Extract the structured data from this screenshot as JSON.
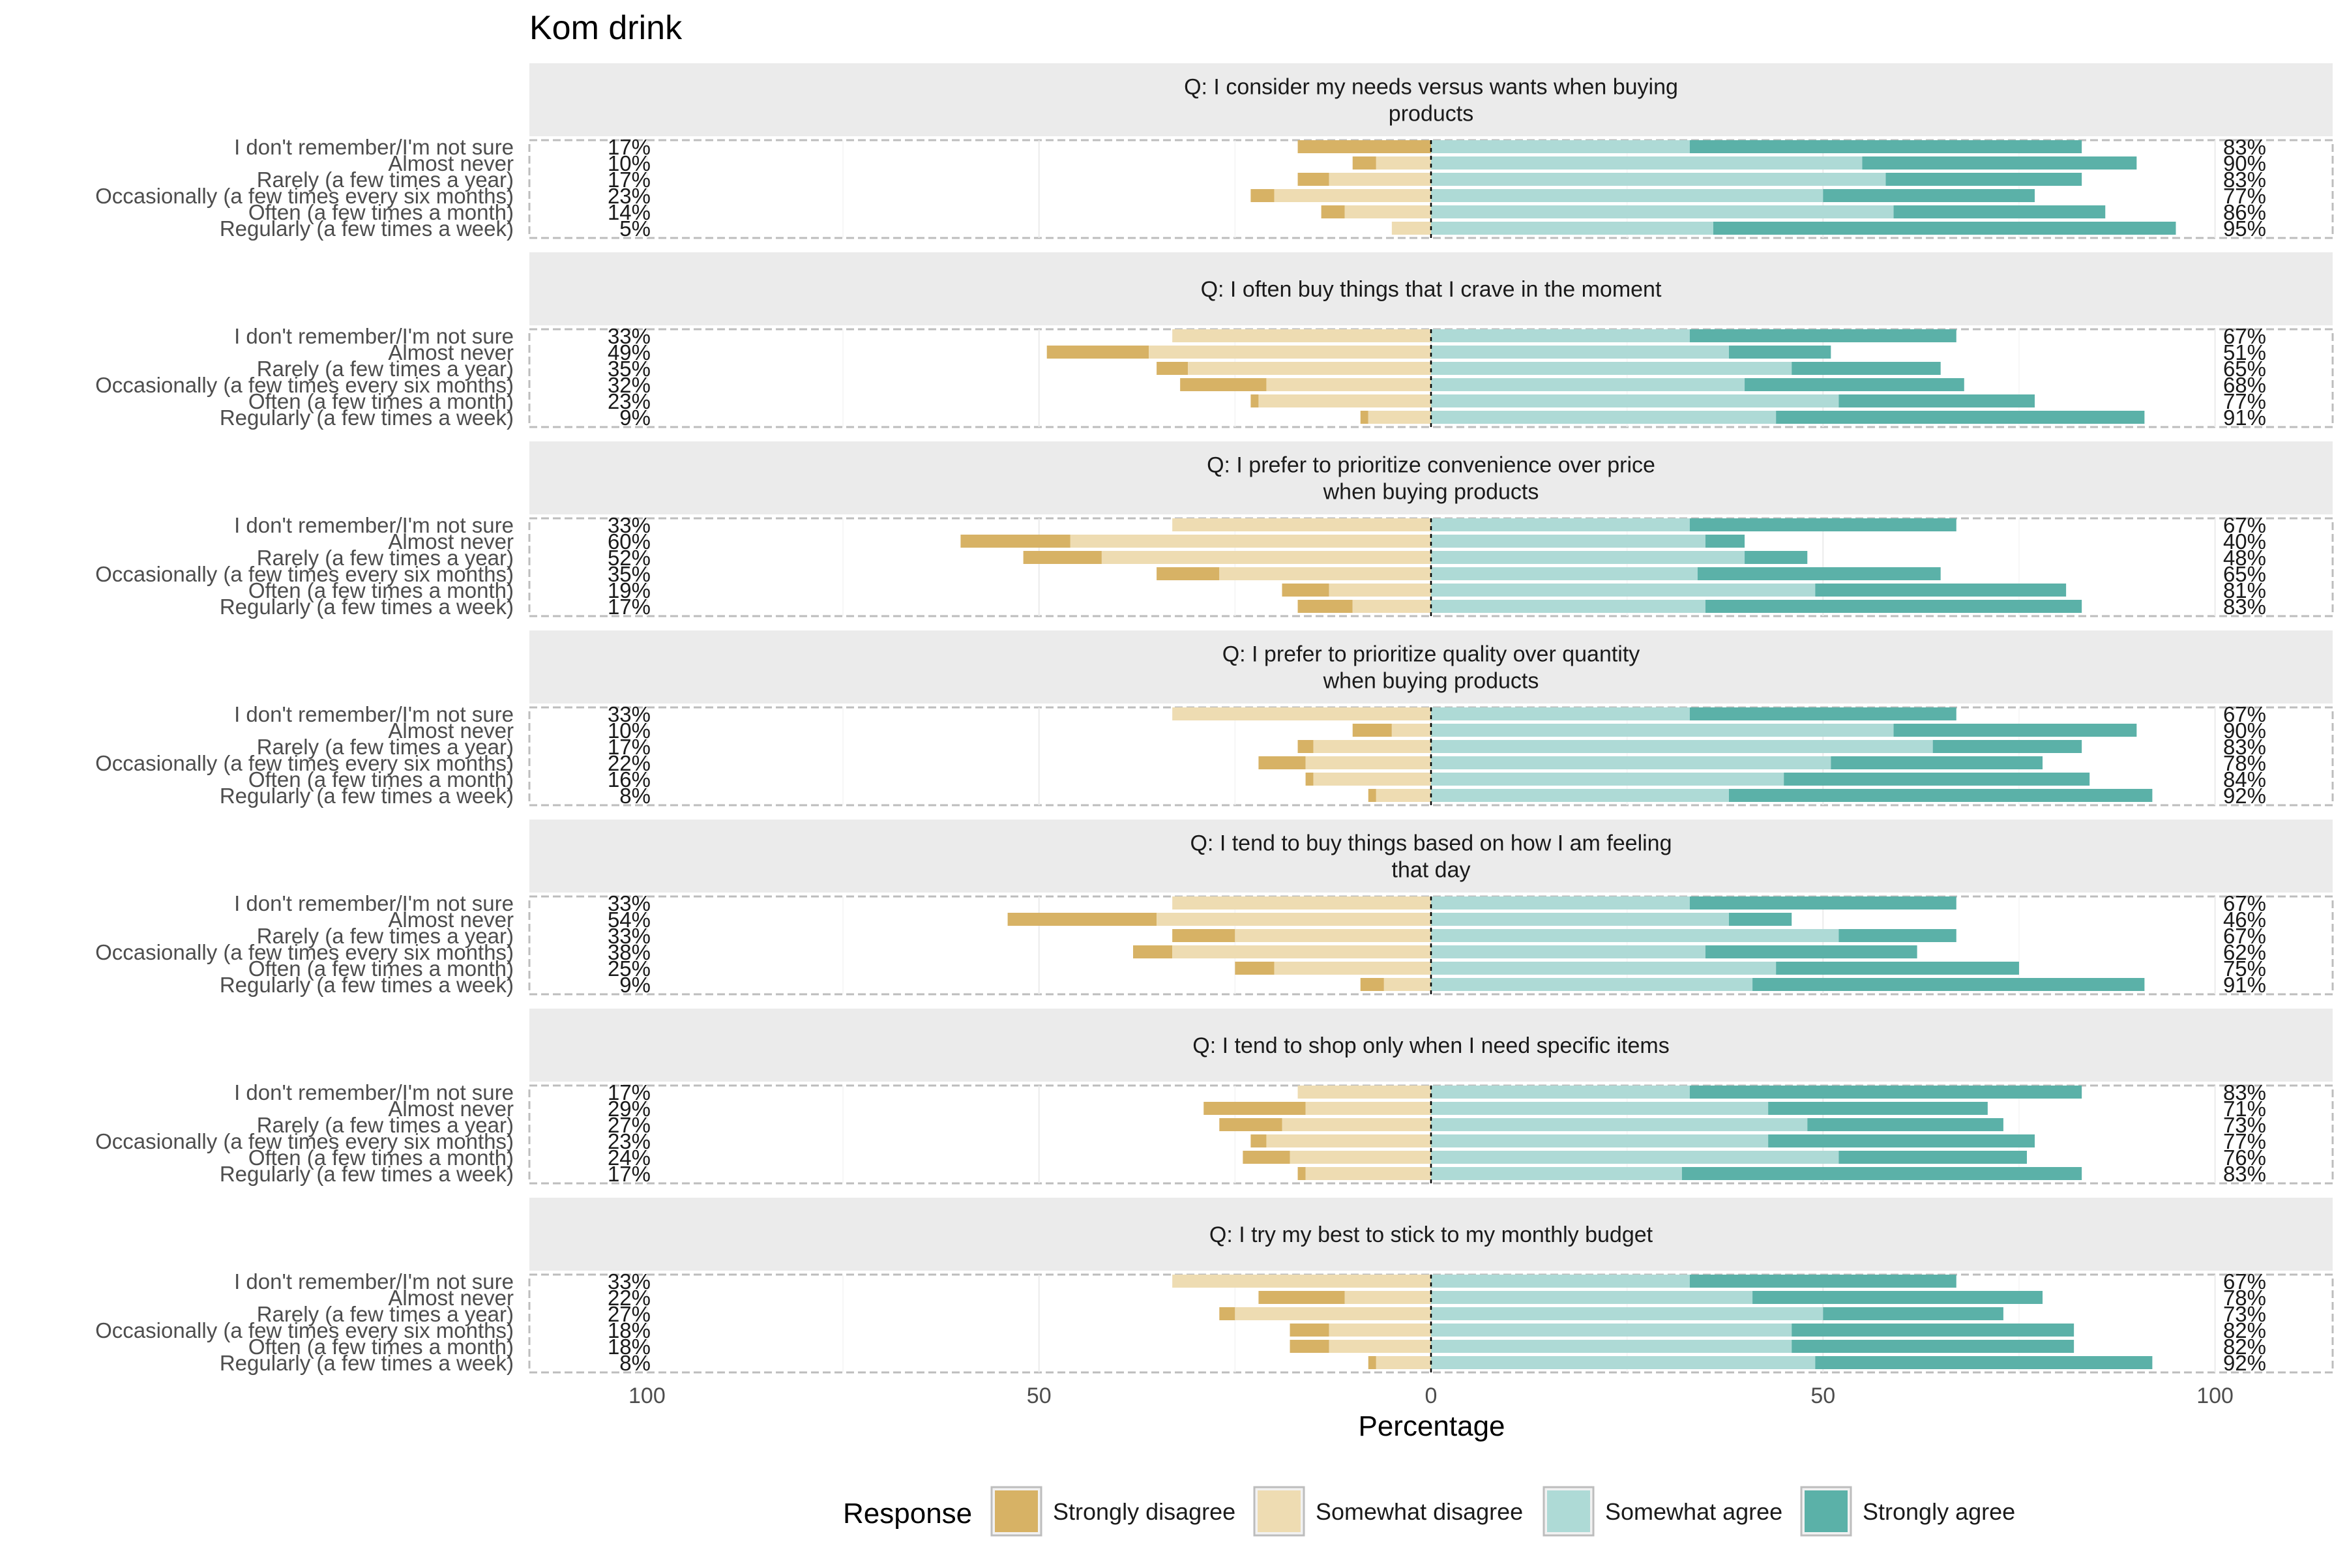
{
  "chart_data": {
    "type": "bar",
    "title": "Kom drink",
    "xlabel": "Percentage",
    "ylabel": "",
    "xlim": [
      -115,
      115
    ],
    "x_ticks": [
      -100,
      -50,
      0,
      50,
      100
    ],
    "x_tick_labels": [
      "100",
      "50",
      "0",
      "50",
      "100"
    ],
    "grid": true,
    "legend_position": "bottom",
    "legend_title": "Response",
    "legend": [
      {
        "name": "Strongly disagree",
        "color": "#D7B265"
      },
      {
        "name": "Somewhat disagree",
        "color": "#EEDCB2"
      },
      {
        "name": "Somewhat agree",
        "color": "#AEDAD6"
      },
      {
        "name": "Strongly agree",
        "color": "#5BB1A8"
      }
    ],
    "categories": [
      "I don't remember/I'm not sure",
      "Almost never",
      "Rarely (a few times a year)",
      "Occasionally (a few times every six months)",
      "Often (a few times a month)",
      "Regularly (a few times a week)"
    ],
    "panels": [
      {
        "question": "Q: I consider my needs versus wants when buying products",
        "strip_lines": [
          "Q: I consider my needs versus wants when buying",
          "products"
        ],
        "rows": [
          {
            "sd": 17,
            "swd": 0,
            "swa": 33,
            "sa": 50,
            "left_label": "17%",
            "right_label": "83%"
          },
          {
            "sd": 3,
            "swd": 7,
            "swa": 55,
            "sa": 35,
            "left_label": "10%",
            "right_label": "90%"
          },
          {
            "sd": 4,
            "swd": 13,
            "swa": 58,
            "sa": 25,
            "left_label": "17%",
            "right_label": "83%"
          },
          {
            "sd": 3,
            "swd": 20,
            "swa": 50,
            "sa": 27,
            "left_label": "23%",
            "right_label": "77%"
          },
          {
            "sd": 3,
            "swd": 11,
            "swa": 59,
            "sa": 27,
            "left_label": "14%",
            "right_label": "86%"
          },
          {
            "sd": 0,
            "swd": 5,
            "swa": 36,
            "sa": 59,
            "left_label": "5%",
            "right_label": "95%"
          }
        ]
      },
      {
        "question": "Q: I often buy things that I crave in the moment",
        "strip_lines": [
          "Q: I often buy things that I crave in the moment"
        ],
        "rows": [
          {
            "sd": 0,
            "swd": 33,
            "swa": 33,
            "sa": 34,
            "left_label": "33%",
            "right_label": "67%"
          },
          {
            "sd": 13,
            "swd": 36,
            "swa": 38,
            "sa": 13,
            "left_label": "49%",
            "right_label": "51%"
          },
          {
            "sd": 4,
            "swd": 31,
            "swa": 46,
            "sa": 19,
            "left_label": "35%",
            "right_label": "65%"
          },
          {
            "sd": 11,
            "swd": 21,
            "swa": 40,
            "sa": 28,
            "left_label": "32%",
            "right_label": "68%"
          },
          {
            "sd": 1,
            "swd": 22,
            "swa": 52,
            "sa": 25,
            "left_label": "23%",
            "right_label": "77%"
          },
          {
            "sd": 1,
            "swd": 8,
            "swa": 44,
            "sa": 47,
            "left_label": "9%",
            "right_label": "91%"
          }
        ]
      },
      {
        "question": "Q: I prefer to prioritize convenience over price when buying products",
        "strip_lines": [
          "Q: I prefer to prioritize convenience over price",
          "when buying products"
        ],
        "rows": [
          {
            "sd": 0,
            "swd": 33,
            "swa": 33,
            "sa": 34,
            "left_label": "33%",
            "right_label": "67%"
          },
          {
            "sd": 14,
            "swd": 46,
            "swa": 35,
            "sa": 5,
            "left_label": "60%",
            "right_label": "40%"
          },
          {
            "sd": 10,
            "swd": 42,
            "swa": 40,
            "sa": 8,
            "left_label": "52%",
            "right_label": "48%"
          },
          {
            "sd": 8,
            "swd": 27,
            "swa": 34,
            "sa": 31,
            "left_label": "35%",
            "right_label": "65%"
          },
          {
            "sd": 6,
            "swd": 13,
            "swa": 49,
            "sa": 32,
            "left_label": "19%",
            "right_label": "81%"
          },
          {
            "sd": 7,
            "swd": 10,
            "swa": 35,
            "sa": 48,
            "left_label": "17%",
            "right_label": "83%"
          }
        ]
      },
      {
        "question": "Q: I prefer to prioritize quality over quantity when buying products",
        "strip_lines": [
          "Q: I prefer to prioritize quality over quantity",
          "when buying products"
        ],
        "rows": [
          {
            "sd": 0,
            "swd": 33,
            "swa": 33,
            "sa": 34,
            "left_label": "33%",
            "right_label": "67%"
          },
          {
            "sd": 5,
            "swd": 5,
            "swa": 59,
            "sa": 31,
            "left_label": "10%",
            "right_label": "90%"
          },
          {
            "sd": 2,
            "swd": 15,
            "swa": 64,
            "sa": 19,
            "left_label": "17%",
            "right_label": "83%"
          },
          {
            "sd": 6,
            "swd": 16,
            "swa": 51,
            "sa": 27,
            "left_label": "22%",
            "right_label": "78%"
          },
          {
            "sd": 1,
            "swd": 15,
            "swa": 45,
            "sa": 39,
            "left_label": "16%",
            "right_label": "84%"
          },
          {
            "sd": 1,
            "swd": 7,
            "swa": 38,
            "sa": 54,
            "left_label": "8%",
            "right_label": "92%"
          }
        ]
      },
      {
        "question": "Q: I tend to buy things based on how I am feeling that day",
        "strip_lines": [
          "Q: I tend to buy things based on how I am feeling",
          "that day"
        ],
        "rows": [
          {
            "sd": 0,
            "swd": 33,
            "swa": 33,
            "sa": 34,
            "left_label": "33%",
            "right_label": "67%"
          },
          {
            "sd": 19,
            "swd": 35,
            "swa": 38,
            "sa": 8,
            "left_label": "54%",
            "right_label": "46%"
          },
          {
            "sd": 8,
            "swd": 25,
            "swa": 52,
            "sa": 15,
            "left_label": "33%",
            "right_label": "67%"
          },
          {
            "sd": 5,
            "swd": 33,
            "swa": 35,
            "sa": 27,
            "left_label": "38%",
            "right_label": "62%"
          },
          {
            "sd": 5,
            "swd": 20,
            "swa": 44,
            "sa": 31,
            "left_label": "25%",
            "right_label": "75%"
          },
          {
            "sd": 3,
            "swd": 6,
            "swa": 41,
            "sa": 50,
            "left_label": "9%",
            "right_label": "91%"
          }
        ]
      },
      {
        "question": "Q: I tend to shop only when I need specific items",
        "strip_lines": [
          "Q: I tend to shop only when I need specific items"
        ],
        "rows": [
          {
            "sd": 0,
            "swd": 17,
            "swa": 33,
            "sa": 50,
            "left_label": "17%",
            "right_label": "83%"
          },
          {
            "sd": 13,
            "swd": 16,
            "swa": 43,
            "sa": 28,
            "left_label": "29%",
            "right_label": "71%"
          },
          {
            "sd": 8,
            "swd": 19,
            "swa": 48,
            "sa": 25,
            "left_label": "27%",
            "right_label": "73%"
          },
          {
            "sd": 2,
            "swd": 21,
            "swa": 43,
            "sa": 34,
            "left_label": "23%",
            "right_label": "77%"
          },
          {
            "sd": 6,
            "swd": 18,
            "swa": 52,
            "sa": 24,
            "left_label": "24%",
            "right_label": "76%"
          },
          {
            "sd": 1,
            "swd": 16,
            "swa": 32,
            "sa": 51,
            "left_label": "17%",
            "right_label": "83%"
          }
        ]
      },
      {
        "question": "Q: I try my best to stick to my monthly budget",
        "strip_lines": [
          "Q: I try my best to stick to my monthly budget"
        ],
        "rows": [
          {
            "sd": 0,
            "swd": 33,
            "swa": 33,
            "sa": 34,
            "left_label": "33%",
            "right_label": "67%"
          },
          {
            "sd": 11,
            "swd": 11,
            "swa": 41,
            "sa": 37,
            "left_label": "22%",
            "right_label": "78%"
          },
          {
            "sd": 2,
            "swd": 25,
            "swa": 50,
            "sa": 23,
            "left_label": "27%",
            "right_label": "73%"
          },
          {
            "sd": 5,
            "swd": 13,
            "swa": 46,
            "sa": 36,
            "left_label": "18%",
            "right_label": "82%"
          },
          {
            "sd": 5,
            "swd": 13,
            "swa": 46,
            "sa": 36,
            "left_label": "18%",
            "right_label": "82%"
          },
          {
            "sd": 1,
            "swd": 7,
            "swa": 49,
            "sa": 43,
            "left_label": "8%",
            "right_label": "92%"
          }
        ]
      }
    ]
  }
}
